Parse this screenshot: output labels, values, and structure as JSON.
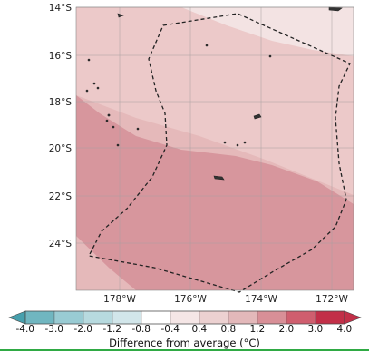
{
  "map": {
    "lat_labels": [
      "14°S",
      "16°S",
      "18°S",
      "20°S",
      "22°S",
      "24°S"
    ],
    "lon_labels": [
      "178°W",
      "176°W",
      "174°W",
      "172°W"
    ]
  },
  "colorbar": {
    "ticks": [
      "-4.0",
      "-3.0",
      "-2.0",
      "-1.2",
      "-0.8",
      "-0.4",
      "0.4",
      "0.8",
      "1.2",
      "2.0",
      "3.0",
      "4.0"
    ],
    "colors": [
      "#47a0ad",
      "#70b6c0",
      "#99cbd3",
      "#b7dadf",
      "#d2e6ea",
      "#ffffff",
      "#f5e6e6",
      "#ecd1d1",
      "#e3b8ba",
      "#d88f97",
      "#cf5e6e",
      "#c22f48"
    ],
    "title": "Difference from average (°C)"
  },
  "colors": {
    "band_lightest": "#f3e3e3",
    "band_light": "#ecc9c9",
    "band_medium": "#e5b9ba",
    "band_strong": "#d7969d",
    "boundary": "#222222",
    "accent_line": "#2faa44"
  }
}
